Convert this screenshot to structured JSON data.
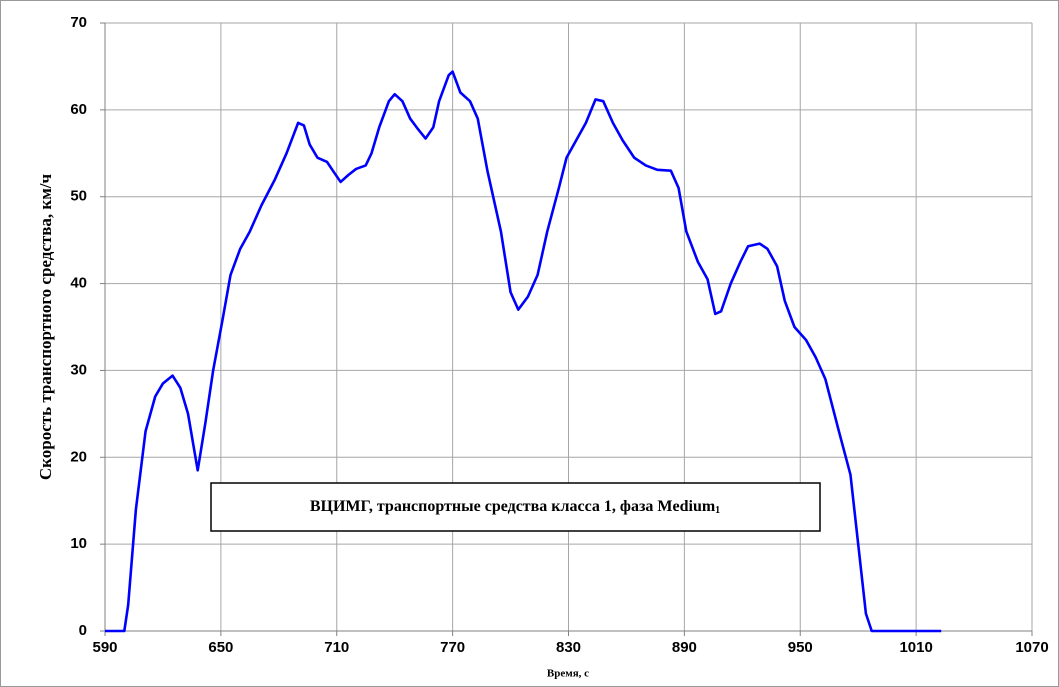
{
  "chart_data": {
    "type": "line",
    "x_label": "Время, с",
    "y_label": "Скорость транспортного средства, км/ч",
    "annotation": "ВЦИМГ, транспортные средства класса 1, фаза Medium",
    "annotation_subscript": "1",
    "xlim": [
      590,
      1070
    ],
    "xticks": [
      590,
      650,
      710,
      770,
      830,
      890,
      950,
      1010,
      1070
    ],
    "ylim": [
      0,
      70
    ],
    "yticks": [
      0,
      10,
      20,
      30,
      40,
      50,
      60,
      70
    ],
    "grid": true,
    "series": [
      {
        "name": "Medium",
        "color": "#0000ff",
        "x": [
          590,
          600,
          602,
          606,
          611,
          616,
          620,
          625,
          629,
          633,
          638,
          642,
          646,
          651,
          655,
          660,
          665,
          671,
          678,
          684,
          690,
          693,
          696,
          700,
          705,
          708,
          712,
          716,
          720,
          725,
          728,
          732,
          737,
          740,
          744,
          748,
          752,
          756,
          760,
          763,
          768,
          770,
          774,
          779,
          783,
          788,
          795,
          800,
          804,
          809,
          814,
          819,
          825,
          829,
          834,
          839,
          844,
          848,
          853,
          858,
          864,
          870,
          876,
          883,
          887,
          891,
          897,
          902,
          906,
          909,
          914,
          919,
          923,
          929,
          933,
          938,
          942,
          947,
          953,
          958,
          963,
          970,
          976,
          980,
          984,
          987,
          1023
        ],
        "values": [
          0,
          0,
          3,
          14,
          23,
          27,
          28.5,
          29.4,
          28,
          25,
          18.5,
          24,
          30,
          36,
          41,
          44,
          46,
          49,
          52,
          55,
          58.5,
          58.2,
          56,
          54.5,
          54,
          53,
          51.7,
          52.5,
          53.2,
          53.6,
          55,
          58,
          61,
          61.8,
          61,
          59,
          57.8,
          56.7,
          58,
          61,
          64,
          64.4,
          62,
          61,
          59,
          53,
          46,
          39,
          37,
          38.5,
          41,
          46,
          51,
          54.5,
          56.5,
          58.5,
          61.2,
          61,
          58.5,
          56.5,
          54.5,
          53.6,
          53.1,
          53,
          51,
          46,
          42.5,
          40.5,
          36.5,
          36.8,
          40,
          42.5,
          44.3,
          44.6,
          44,
          42,
          38,
          35,
          33.5,
          31.5,
          29,
          23,
          18,
          10,
          2,
          0,
          0
        ]
      }
    ]
  }
}
